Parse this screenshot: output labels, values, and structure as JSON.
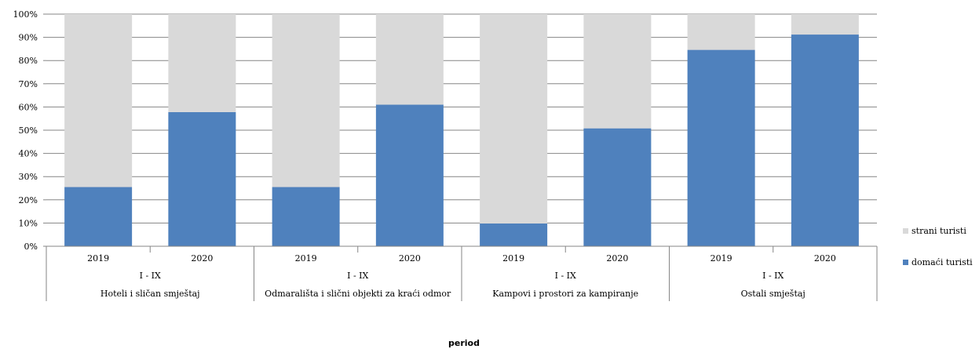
{
  "chart_data": {
    "type": "bar",
    "stacked": true,
    "percent": true,
    "categories": [
      {
        "year": "2019",
        "period": "I - IX",
        "group": "Hoteli i sličan smještaj"
      },
      {
        "year": "2020",
        "period": "I - IX",
        "group": "Hoteli i sličan smještaj"
      },
      {
        "year": "2019",
        "period": "I - IX",
        "group": "Odmarališta i slični objekti za kraći odmor"
      },
      {
        "year": "2020",
        "period": "I - IX",
        "group": "Odmarališta i slični objekti za kraći odmor"
      },
      {
        "year": "2019",
        "period": "I - IX",
        "group": "Kampovi i prostori za kampiranje"
      },
      {
        "year": "2020",
        "period": "I - IX",
        "group": "Kampovi i prostori za kampiranje"
      },
      {
        "year": "2019",
        "period": "I - IX",
        "group": "Ostali smještaj"
      },
      {
        "year": "2020",
        "period": "I - IX",
        "group": "Ostali smještaj"
      }
    ],
    "groups": [
      "Hoteli i sličan smještaj",
      "Odmarališta i slični objekti za kraći odmor",
      "Kampovi i prostori za kampiranje",
      "Ostali smještaj"
    ],
    "series": [
      {
        "name": "domaći turisti",
        "color": "#4f81bd",
        "values": [
          25.5,
          57.8,
          25.5,
          61.0,
          9.8,
          50.8,
          84.6,
          91.2
        ]
      },
      {
        "name": "strani turisti",
        "color": "#d9d9d9",
        "values": [
          74.5,
          42.2,
          74.5,
          39.0,
          90.2,
          49.2,
          15.4,
          8.8
        ]
      }
    ],
    "ylim": [
      0,
      100
    ],
    "yticks": [
      "0%",
      "10%",
      "20%",
      "30%",
      "40%",
      "50%",
      "60%",
      "70%",
      "80%",
      "90%",
      "100%"
    ],
    "xlabel": "period",
    "ylabel": "",
    "grid": true,
    "legend_position": "right"
  }
}
